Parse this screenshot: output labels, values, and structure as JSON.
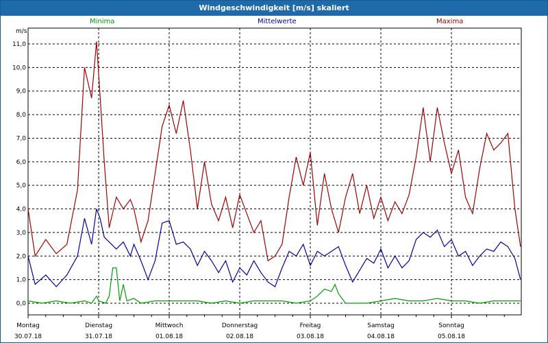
{
  "window": {
    "title": "Windgeschwindigkeit [m/s] skaliert"
  },
  "legend": {
    "min_label": "Minima",
    "mean_label": "Mittelwerte",
    "max_label": "Maxima"
  },
  "colors": {
    "min": "#00a000",
    "mean": "#0000a0",
    "max": "#a00000",
    "grid": "#000000",
    "titlebar": "#1f6aa8"
  },
  "chart_data": {
    "type": "line",
    "title": "Windgeschwindigkeit [m/s] skaliert",
    "ylabel": "m/s",
    "xlabel": "",
    "ylim": [
      0,
      11.5
    ],
    "yticks": [
      "0,0",
      "1,0",
      "2,0",
      "3,0",
      "4,0",
      "5,0",
      "6,0",
      "7,0",
      "8,0",
      "9,0",
      "10,0",
      "11,0"
    ],
    "grid": true,
    "legend_position": "top",
    "x_unit": "day",
    "xticks": [
      {
        "day": "Montag",
        "date": "30.07.18"
      },
      {
        "day": "Dienstag",
        "date": "31.07.18"
      },
      {
        "day": "Mittwoch",
        "date": "01.08.18"
      },
      {
        "day": "Donnerstag",
        "date": "02.08.18"
      },
      {
        "day": "Freitag",
        "date": "03.08.18"
      },
      {
        "day": "Samstag",
        "date": "04.08.18"
      },
      {
        "day": "Sonntag",
        "date": "05.08.18"
      }
    ],
    "xlim": [
      0,
      7
    ],
    "series": [
      {
        "name": "Maxima",
        "color": "#a00000",
        "x": [
          0.0,
          0.1,
          0.25,
          0.4,
          0.55,
          0.7,
          0.8,
          0.9,
          0.97,
          1.02,
          1.08,
          1.15,
          1.25,
          1.35,
          1.45,
          1.5,
          1.6,
          1.7,
          1.8,
          1.9,
          2.0,
          2.1,
          2.2,
          2.3,
          2.4,
          2.5,
          2.6,
          2.7,
          2.8,
          2.9,
          3.0,
          3.1,
          3.2,
          3.3,
          3.4,
          3.5,
          3.6,
          3.7,
          3.8,
          3.9,
          4.0,
          4.1,
          4.2,
          4.3,
          4.4,
          4.5,
          4.6,
          4.7,
          4.8,
          4.9,
          5.0,
          5.1,
          5.2,
          5.3,
          5.4,
          5.5,
          5.6,
          5.7,
          5.8,
          5.9,
          6.0,
          6.1,
          6.2,
          6.3,
          6.4,
          6.5,
          6.6,
          6.7,
          6.8,
          6.9,
          6.98
        ],
        "values": [
          4.0,
          2.0,
          2.7,
          2.1,
          2.5,
          4.8,
          10.0,
          8.7,
          11.1,
          8.8,
          6.0,
          3.2,
          4.5,
          4.0,
          4.4,
          4.0,
          2.6,
          3.5,
          5.5,
          7.5,
          8.4,
          7.2,
          8.6,
          6.5,
          4.0,
          6.0,
          4.2,
          3.5,
          4.5,
          3.2,
          4.6,
          3.8,
          3.0,
          3.5,
          1.8,
          2.0,
          2.5,
          4.5,
          6.2,
          5.0,
          6.4,
          3.3,
          5.5,
          4.0,
          3.0,
          4.5,
          5.5,
          3.8,
          5.0,
          3.6,
          4.5,
          3.5,
          4.3,
          3.8,
          4.6,
          6.2,
          8.3,
          6.0,
          8.3,
          6.8,
          5.5,
          6.5,
          4.5,
          3.8,
          5.7,
          7.2,
          6.5,
          6.8,
          7.2,
          4.0,
          2.4
        ]
      },
      {
        "name": "Mittelwerte",
        "color": "#0000a0",
        "x": [
          0.0,
          0.1,
          0.25,
          0.4,
          0.55,
          0.7,
          0.8,
          0.9,
          0.97,
          1.02,
          1.08,
          1.15,
          1.25,
          1.35,
          1.45,
          1.5,
          1.6,
          1.7,
          1.8,
          1.9,
          2.0,
          2.1,
          2.2,
          2.3,
          2.4,
          2.5,
          2.6,
          2.7,
          2.8,
          2.9,
          3.0,
          3.1,
          3.2,
          3.3,
          3.4,
          3.5,
          3.6,
          3.7,
          3.8,
          3.9,
          4.0,
          4.1,
          4.2,
          4.3,
          4.4,
          4.5,
          4.6,
          4.7,
          4.8,
          4.9,
          5.0,
          5.1,
          5.2,
          5.3,
          5.4,
          5.5,
          5.6,
          5.7,
          5.8,
          5.9,
          6.0,
          6.1,
          6.2,
          6.3,
          6.4,
          6.5,
          6.6,
          6.7,
          6.8,
          6.9,
          6.98
        ],
        "values": [
          2.0,
          0.8,
          1.2,
          0.7,
          1.2,
          2.0,
          3.6,
          2.5,
          4.0,
          3.6,
          2.8,
          2.6,
          2.3,
          2.6,
          2.0,
          2.5,
          1.8,
          1.0,
          1.8,
          3.4,
          3.5,
          2.5,
          2.6,
          2.3,
          1.6,
          2.2,
          1.8,
          1.3,
          1.8,
          0.9,
          1.5,
          1.2,
          1.8,
          1.3,
          0.9,
          0.7,
          1.5,
          2.2,
          2.0,
          2.5,
          1.6,
          2.2,
          2.0,
          2.2,
          2.4,
          1.6,
          0.9,
          1.4,
          1.9,
          1.7,
          2.3,
          1.5,
          2.0,
          1.5,
          1.8,
          2.7,
          3.0,
          2.8,
          3.1,
          2.4,
          2.7,
          2.0,
          2.2,
          1.6,
          2.0,
          2.3,
          2.2,
          2.6,
          2.4,
          1.9,
          1.0
        ]
      },
      {
        "name": "Minima",
        "color": "#00a000",
        "x": [
          0.0,
          0.2,
          0.4,
          0.6,
          0.8,
          0.9,
          0.97,
          1.0,
          1.1,
          1.15,
          1.2,
          1.25,
          1.3,
          1.35,
          1.4,
          1.5,
          1.6,
          1.8,
          2.0,
          2.2,
          2.4,
          2.6,
          2.8,
          3.0,
          3.2,
          3.4,
          3.6,
          3.8,
          4.0,
          4.1,
          4.2,
          4.3,
          4.35,
          4.4,
          4.5,
          4.6,
          4.8,
          5.0,
          5.2,
          5.4,
          5.6,
          5.8,
          6.0,
          6.2,
          6.4,
          6.6,
          6.8,
          6.98
        ],
        "values": [
          0.1,
          0.0,
          0.1,
          0.0,
          0.1,
          0.0,
          0.3,
          0.1,
          0.0,
          0.3,
          1.5,
          1.5,
          0.1,
          0.8,
          0.1,
          0.2,
          0.0,
          0.1,
          0.1,
          0.1,
          0.1,
          0.0,
          0.1,
          0.0,
          0.1,
          0.1,
          0.1,
          0.0,
          0.1,
          0.3,
          0.6,
          0.5,
          0.8,
          0.4,
          0.0,
          0.0,
          0.0,
          0.1,
          0.2,
          0.1,
          0.1,
          0.2,
          0.1,
          0.1,
          0.0,
          0.1,
          0.1,
          0.1
        ]
      }
    ]
  }
}
